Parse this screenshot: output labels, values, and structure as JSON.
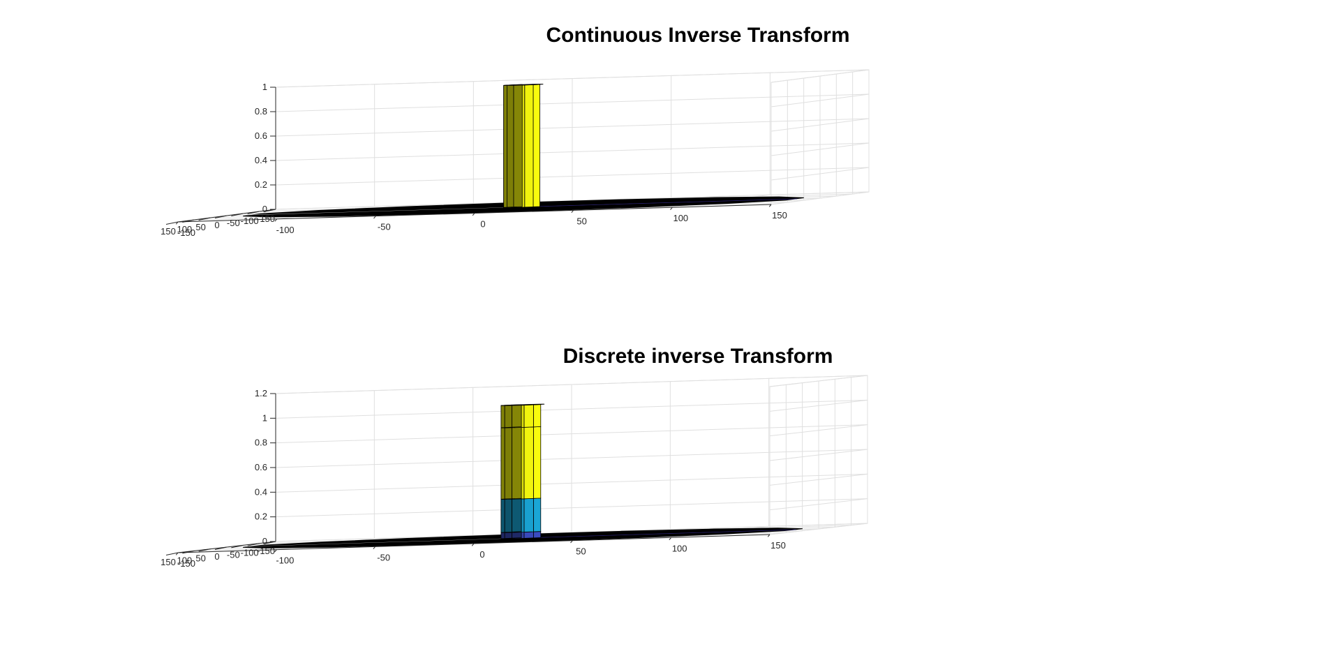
{
  "chart_data": [
    {
      "type": "surface",
      "title": "Continuous Inverse Transform",
      "xlabel": "",
      "ylabel": "",
      "zlabel": "",
      "xlim": [
        -150,
        150
      ],
      "ylim": [
        -150,
        150
      ],
      "zlim": [
        0,
        1
      ],
      "x_ticks": [
        "-150",
        "-100",
        "-50",
        "0",
        "50",
        "100",
        "150"
      ],
      "y_ticks": [
        "-150",
        "-100",
        "-50",
        "0",
        "50",
        "100",
        "150"
      ],
      "z_ticks": [
        "0",
        "0.2",
        "0.4",
        "0.6",
        "0.8",
        "1"
      ],
      "grid": true,
      "shape": "cylinder",
      "cylinder_radius": 10,
      "bands": [
        {
          "z_from": 0,
          "z_to": 1,
          "color": "#f9fb0e"
        }
      ],
      "base_color": "#000000",
      "colors": {
        "high": "#f9fb0e",
        "low": "#352a87",
        "floor": "#000000"
      }
    },
    {
      "type": "surface",
      "title": "Discrete inverse Transform",
      "xlabel": "",
      "ylabel": "",
      "zlabel": "",
      "xlim": [
        -150,
        150
      ],
      "ylim": [
        -150,
        150
      ],
      "zlim": [
        0,
        1.2
      ],
      "x_ticks": [
        "-150",
        "-100",
        "-50",
        "0",
        "50",
        "100",
        "150"
      ],
      "y_ticks": [
        "-150",
        "-100",
        "-50",
        "0",
        "50",
        "100",
        "150"
      ],
      "z_ticks": [
        "0",
        "0.2",
        "0.4",
        "0.6",
        "0.8",
        "1",
        "1.2"
      ],
      "grid": true,
      "shape": "cylinder",
      "cylinder_radius": 11,
      "bands": [
        {
          "z_from": 0,
          "z_to": 0.05,
          "color": "#3b4cc0"
        },
        {
          "z_from": 0.05,
          "z_to": 0.32,
          "color": "#1aa6d6"
        },
        {
          "z_from": 0.32,
          "z_to": 0.9,
          "color": "#f9fb0e"
        },
        {
          "z_from": 0.9,
          "z_to": 1.08,
          "color": "#f9fb0e"
        }
      ],
      "top_color": "#fdbc4b",
      "base_color": "#000000",
      "colors": {
        "high": "#f9fb0e",
        "mid": "#1aa6d6",
        "low": "#3b4cc0",
        "peak": "#fdbc4b",
        "floor": "#000000"
      }
    }
  ]
}
